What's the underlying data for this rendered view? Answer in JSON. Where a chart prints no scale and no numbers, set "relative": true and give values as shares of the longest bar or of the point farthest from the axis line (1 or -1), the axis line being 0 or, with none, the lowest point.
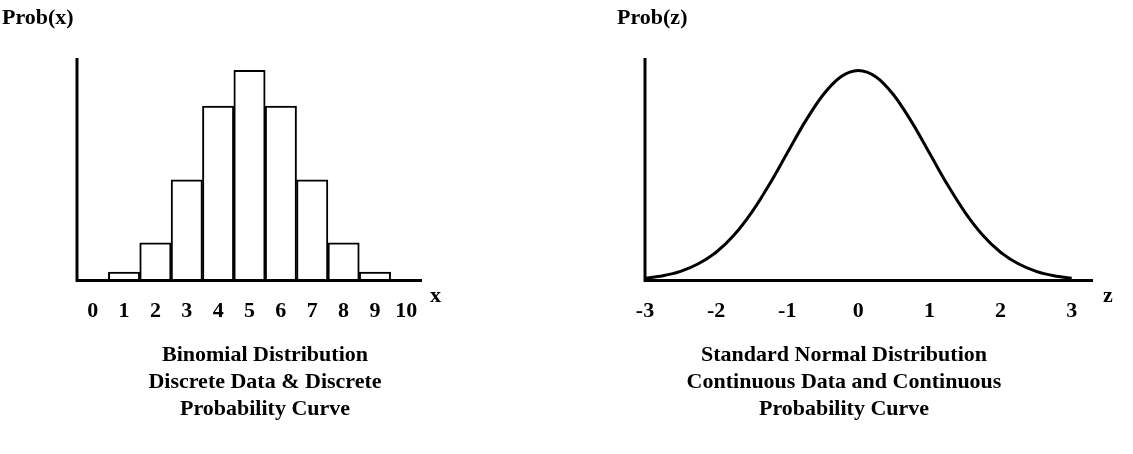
{
  "chart_data": [
    {
      "type": "bar",
      "title": "Binomial Distribution\nDiscrete Data & Discrete\nProbability Curve",
      "xlabel": "x",
      "ylabel": "Prob(x)",
      "relative": true,
      "color": "#ffffff",
      "categories": [
        "0",
        "1",
        "2",
        "3",
        "4",
        "5",
        "6",
        "7",
        "8",
        "9",
        "10"
      ],
      "values": [
        0.004,
        0.04,
        0.18,
        0.48,
        0.83,
        1,
        0.83,
        0.48,
        0.18,
        0.04,
        0.004
      ]
    },
    {
      "type": "line",
      "title": "Standard Normal Distribution\nContinuous Data and Continuous\nProbability Curve",
      "xlabel": "z",
      "ylabel": "Prob(z)",
      "relative": true,
      "color": "#000000",
      "marker": "none",
      "x": [
        -3,
        -2.75,
        -2.5,
        -2.25,
        -2,
        -1.75,
        -1.5,
        -1.25,
        -1,
        -0.75,
        -0.5,
        -0.25,
        0,
        0.25,
        0.5,
        0.75,
        1,
        1.25,
        1.5,
        1.75,
        2,
        2.25,
        2.5,
        2.75,
        3
      ],
      "values": [
        0.011,
        0.023,
        0.044,
        0.08,
        0.135,
        0.216,
        0.325,
        0.458,
        0.607,
        0.755,
        0.882,
        0.969,
        1,
        0.969,
        0.882,
        0.755,
        0.607,
        0.458,
        0.325,
        0.216,
        0.135,
        0.08,
        0.044,
        0.023,
        0.011
      ],
      "xlim": [
        -3,
        3.3
      ],
      "xticks": [
        -3,
        -2,
        -1,
        0,
        1,
        2,
        3
      ]
    }
  ]
}
